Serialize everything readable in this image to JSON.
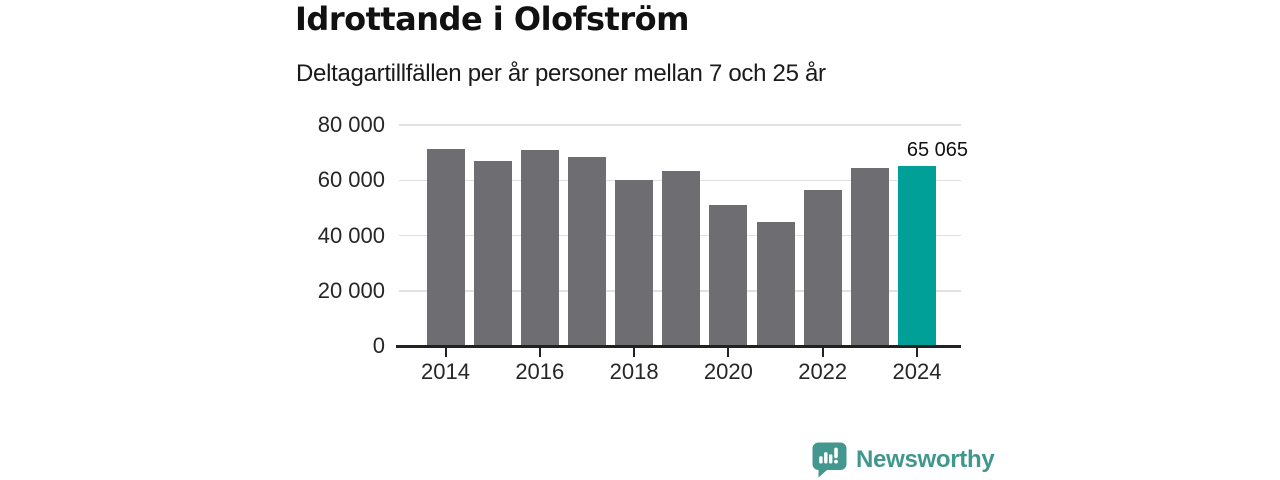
{
  "title": "Idrottande i Olofström",
  "subtitle": "Deltagartillfällen per år personer mellan 7 och 25 år",
  "chart_data": {
    "type": "bar",
    "categories": [
      "2014",
      "2015",
      "2016",
      "2017",
      "2018",
      "2019",
      "2020",
      "2021",
      "2022",
      "2023",
      "2024"
    ],
    "values": [
      71200,
      67100,
      70800,
      68300,
      60100,
      63500,
      51200,
      44800,
      56600,
      64500,
      65065
    ],
    "highlight_index": 10,
    "highlight_label": "65 065",
    "title": "Idrottande i Olofström",
    "subtitle": "Deltagartillfällen per år personer mellan 7 och 25 år",
    "xlabel": "",
    "ylabel": "",
    "ylim": [
      0,
      80000
    ],
    "yticks": [
      {
        "value": 0,
        "label": "0"
      },
      {
        "value": 20000,
        "label": "20 000"
      },
      {
        "value": 40000,
        "label": "40 000"
      },
      {
        "value": 60000,
        "label": "60 000"
      },
      {
        "value": 80000,
        "label": "80 000"
      }
    ],
    "xtick_labels": [
      "2014",
      "2016",
      "2018",
      "2020",
      "2022",
      "2024"
    ],
    "grid": "horizontal",
    "legend": "none",
    "bar_color": "#6d6d72",
    "highlight_color": "#00a099",
    "axis_color": "#222222",
    "gridline_color": "#e1e1e1",
    "tick_label_color": "#262626"
  },
  "branding": {
    "name": "Newsworthy",
    "icon": "newsworthy-logo-icon",
    "color": "#40978f"
  }
}
